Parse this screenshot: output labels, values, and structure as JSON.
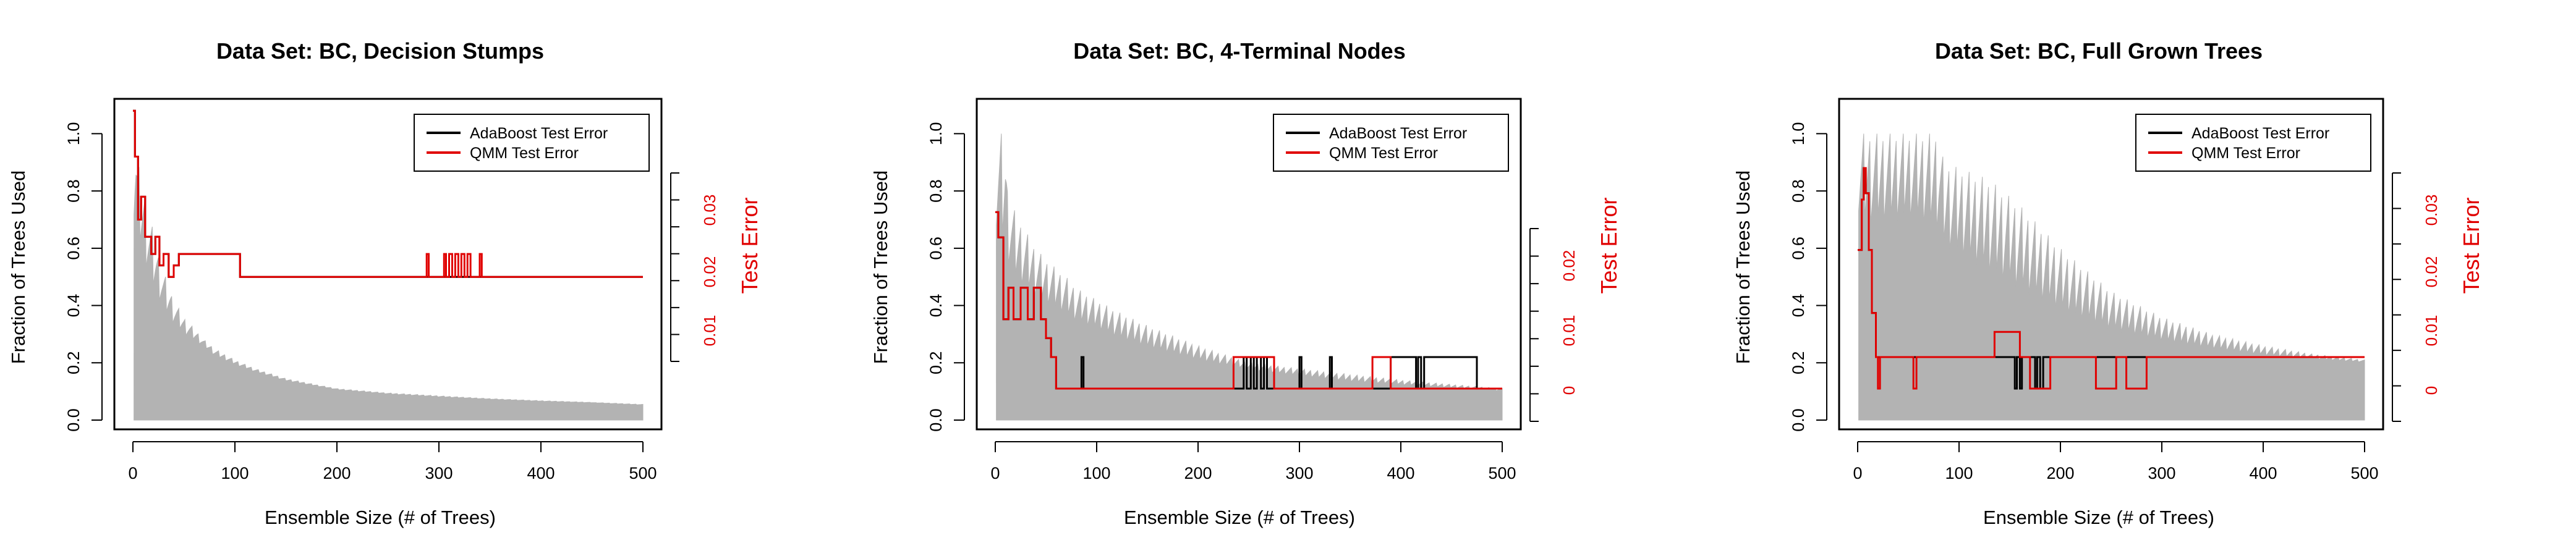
{
  "chart_data": [
    {
      "type": "area",
      "title": "Data Set: BC, Decision Stumps",
      "xlabel": "Ensemble Size (# of Trees)",
      "ylabel": "Fraction of Trees Used",
      "y2label": "Test Error",
      "xlim": [
        0,
        500
      ],
      "ylim": [
        0,
        1.1
      ],
      "y2lim": [
        -0.01,
        0.045
      ],
      "xticks": [
        "0",
        "100",
        "200",
        "300",
        "400",
        "500"
      ],
      "yticks": [
        "0.0",
        "0.2",
        "0.4",
        "0.6",
        "0.8",
        "1.0"
      ],
      "y2ticks": [
        "0.01",
        "0.02",
        "0.03"
      ],
      "legend_position": "top-right",
      "legend": [
        "AdaBoost Test Error",
        "QMM Test Error"
      ],
      "colors": {
        "area": "#b3b3b3",
        "adaboost": "#000000",
        "qmm": "#e00000"
      },
      "series": [
        {
          "name": "Fraction of Trees Used (max)",
          "x": [
            1,
            3,
            5,
            8,
            12,
            16,
            20,
            25,
            30,
            40,
            50,
            60,
            70,
            80,
            100,
            120,
            150,
            200,
            250,
            300,
            350,
            400,
            450,
            500
          ],
          "values": [
            1.0,
            0.97,
            0.9,
            0.85,
            0.8,
            0.72,
            0.66,
            0.58,
            0.52,
            0.42,
            0.36,
            0.32,
            0.28,
            0.25,
            0.21,
            0.18,
            0.145,
            0.11,
            0.095,
            0.085,
            0.075,
            0.068,
            0.062,
            0.055
          ]
        },
        {
          "name": "Fraction of Trees Used (min)",
          "x": [
            1,
            3,
            5,
            8,
            12,
            16,
            20,
            25,
            30,
            40,
            50,
            60,
            70,
            80,
            100,
            120,
            150,
            200,
            250,
            300,
            350,
            400,
            450,
            500
          ],
          "values": [
            0.6,
            0.7,
            0.58,
            0.55,
            0.5,
            0.46,
            0.42,
            0.4,
            0.36,
            0.32,
            0.29,
            0.27,
            0.25,
            0.22,
            0.19,
            0.165,
            0.135,
            0.105,
            0.09,
            0.08,
            0.072,
            0.065,
            0.06,
            0.052
          ]
        },
        {
          "name": "AdaBoost Test Error",
          "x": [
            0,
            2,
            2,
            5,
            5,
            8,
            8,
            12,
            12,
            18,
            18,
            22,
            22,
            26,
            26,
            30,
            30,
            35,
            35,
            40,
            40,
            45,
            45,
            105,
            105,
            500
          ],
          "values": [
            0.044,
            0.044,
            0.036,
            0.036,
            0.025,
            0.025,
            0.029,
            0.029,
            0.022,
            0.022,
            0.019,
            0.019,
            0.022,
            0.022,
            0.017,
            0.017,
            0.019,
            0.019,
            0.015,
            0.015,
            0.017,
            0.017,
            0.019,
            0.019,
            0.015,
            0.015
          ]
        },
        {
          "name": "QMM Test Error",
          "x": [
            0,
            2,
            2,
            5,
            5,
            8,
            8,
            12,
            12,
            18,
            18,
            22,
            22,
            26,
            26,
            30,
            30,
            35,
            35,
            40,
            40,
            45,
            45,
            105,
            105,
            288,
            288,
            290,
            290,
            305,
            305,
            307,
            307,
            310,
            310,
            313,
            313,
            316,
            316,
            319,
            319,
            322,
            322,
            325,
            325,
            328,
            328,
            331,
            331,
            340,
            340,
            342,
            342,
            500
          ],
          "values": [
            0.044,
            0.044,
            0.036,
            0.036,
            0.025,
            0.025,
            0.029,
            0.029,
            0.022,
            0.022,
            0.019,
            0.019,
            0.022,
            0.022,
            0.017,
            0.017,
            0.019,
            0.019,
            0.015,
            0.015,
            0.017,
            0.017,
            0.019,
            0.019,
            0.015,
            0.015,
            0.019,
            0.019,
            0.015,
            0.015,
            0.019,
            0.019,
            0.015,
            0.015,
            0.019,
            0.019,
            0.015,
            0.015,
            0.019,
            0.019,
            0.015,
            0.015,
            0.019,
            0.019,
            0.015,
            0.015,
            0.019,
            0.019,
            0.015,
            0.015,
            0.019,
            0.019,
            0.015,
            0.015
          ]
        }
      ]
    },
    {
      "type": "area",
      "title": "Data Set: BC, 4-Terminal Nodes",
      "xlabel": "Ensemble Size (# of Trees)",
      "ylabel": "Fraction of Trees Used",
      "y2label": "Test Error",
      "xlim": [
        0,
        500
      ],
      "ylim": [
        0,
        1.1
      ],
      "y2lim": [
        -0.005,
        0.045
      ],
      "xticks": [
        "0",
        "100",
        "200",
        "300",
        "400",
        "500"
      ],
      "yticks": [
        "0.0",
        "0.2",
        "0.4",
        "0.6",
        "0.8",
        "1.0"
      ],
      "y2ticks": [
        "0",
        "0.01",
        "0.02"
      ],
      "legend_position": "top-right",
      "legend": [
        "AdaBoost Test Error",
        "QMM Test Error"
      ],
      "colors": {
        "area": "#b3b3b3",
        "adaboost": "#000000",
        "qmm": "#e00000"
      },
      "series": [
        {
          "name": "Fraction of Trees Used (max)",
          "x": [
            1,
            10,
            12,
            20,
            30,
            40,
            50,
            60,
            70,
            80,
            100,
            120,
            150,
            200,
            250,
            300,
            350,
            400,
            450,
            500
          ],
          "values": [
            1.0,
            1.0,
            0.82,
            0.72,
            0.66,
            0.6,
            0.56,
            0.53,
            0.5,
            0.46,
            0.42,
            0.38,
            0.33,
            0.26,
            0.2,
            0.18,
            0.16,
            0.14,
            0.125,
            0.11
          ]
        },
        {
          "name": "Fraction of Trees Used (min)",
          "x": [
            1,
            10,
            12,
            20,
            30,
            40,
            50,
            60,
            70,
            80,
            100,
            120,
            150,
            200,
            250,
            300,
            350,
            400,
            450,
            500
          ],
          "values": [
            0.55,
            0.55,
            0.5,
            0.45,
            0.42,
            0.4,
            0.38,
            0.36,
            0.34,
            0.32,
            0.3,
            0.27,
            0.24,
            0.2,
            0.17,
            0.15,
            0.13,
            0.12,
            0.11,
            0.1
          ]
        },
        {
          "name": "AdaBoost Test Error",
          "x": [
            0,
            3,
            3,
            8,
            8,
            13,
            13,
            18,
            18,
            25,
            25,
            32,
            32,
            38,
            38,
            45,
            45,
            50,
            50,
            55,
            55,
            60,
            60,
            85,
            85,
            87,
            87,
            245,
            245,
            248,
            248,
            252,
            252,
            255,
            255,
            258,
            258,
            262,
            262,
            265,
            265,
            268,
            268,
            300,
            300,
            302,
            302,
            330,
            330,
            332,
            332,
            390,
            390,
            415,
            415,
            417,
            417,
            420,
            420,
            423,
            423,
            426,
            426,
            475,
            475,
            500
          ],
          "values": [
            0.028,
            0.028,
            0.024,
            0.024,
            0.011,
            0.011,
            0.016,
            0.016,
            0.011,
            0.011,
            0.016,
            0.016,
            0.011,
            0.011,
            0.016,
            0.016,
            0.011,
            0.011,
            0.008,
            0.008,
            0.005,
            0.005,
            0.0,
            0.0,
            0.005,
            0.005,
            0.0,
            0.0,
            0.005,
            0.005,
            0.0,
            0.0,
            0.005,
            0.005,
            0.0,
            0.0,
            0.005,
            0.005,
            0.0,
            0.0,
            0.005,
            0.005,
            0.0,
            0.0,
            0.005,
            0.005,
            0.0,
            0.0,
            0.005,
            0.005,
            0.0,
            0.0,
            0.005,
            0.005,
            0.0,
            0.0,
            0.005,
            0.005,
            0.0,
            0.0,
            0.005,
            0.005,
            0.005,
            0.005,
            0.0,
            0.0
          ]
        },
        {
          "name": "QMM Test Error",
          "x": [
            0,
            3,
            3,
            8,
            8,
            13,
            13,
            18,
            18,
            25,
            25,
            32,
            32,
            38,
            38,
            45,
            45,
            50,
            50,
            55,
            55,
            60,
            60,
            235,
            235,
            240,
            240,
            275,
            275,
            280,
            280,
            372,
            372,
            390,
            390,
            475,
            475,
            500
          ],
          "values": [
            0.028,
            0.028,
            0.024,
            0.024,
            0.011,
            0.011,
            0.016,
            0.016,
            0.011,
            0.011,
            0.016,
            0.016,
            0.011,
            0.011,
            0.016,
            0.016,
            0.011,
            0.011,
            0.008,
            0.008,
            0.005,
            0.005,
            0.0,
            0.0,
            0.005,
            0.005,
            0.005,
            0.005,
            0.0,
            0.0,
            0.0,
            0.0,
            0.005,
            0.005,
            0.0,
            0.0,
            0.0,
            0.0
          ]
        }
      ]
    },
    {
      "type": "area",
      "title": "Data Set: BC, Full Grown Trees",
      "xlabel": "Ensemble Size (# of Trees)",
      "ylabel": "Fraction of Trees Used",
      "y2label": "Test Error",
      "xlim": [
        0,
        500
      ],
      "ylim": [
        0,
        1.1
      ],
      "y2lim": [
        -0.005,
        0.045
      ],
      "xticks": [
        "0",
        "100",
        "200",
        "300",
        "400",
        "500"
      ],
      "yticks": [
        "0.0",
        "0.2",
        "0.4",
        "0.6",
        "0.8",
        "1.0"
      ],
      "y2ticks": [
        "0",
        "0.01",
        "0.02",
        "0.03"
      ],
      "legend_position": "top-right",
      "legend": [
        "AdaBoost Test Error",
        "QMM Test Error"
      ],
      "colors": {
        "area": "#b3b3b3",
        "adaboost": "#000000",
        "qmm": "#e00000"
      },
      "series": [
        {
          "name": "Fraction of Trees Used (max)",
          "x": [
            1,
            50,
            80,
            85,
            100,
            130,
            160,
            200,
            250,
            300,
            350,
            400,
            450,
            500
          ],
          "values": [
            1.0,
            1.0,
            1.0,
            0.9,
            0.88,
            0.84,
            0.75,
            0.6,
            0.45,
            0.36,
            0.3,
            0.26,
            0.23,
            0.21
          ]
        },
        {
          "name": "Fraction of Trees Used (min)",
          "x": [
            1,
            50,
            80,
            85,
            100,
            130,
            160,
            200,
            250,
            300,
            350,
            400,
            450,
            500
          ],
          "values": [
            0.62,
            0.65,
            0.6,
            0.55,
            0.52,
            0.45,
            0.4,
            0.34,
            0.29,
            0.26,
            0.24,
            0.22,
            0.21,
            0.2
          ]
        },
        {
          "name": "AdaBoost Test Error",
          "x": [
            0,
            4,
            4,
            6,
            6,
            8,
            8,
            11,
            11,
            14,
            14,
            18,
            18,
            155,
            155,
            157,
            157,
            160,
            160,
            162,
            162,
            175,
            175,
            177,
            177,
            180,
            180,
            183,
            183,
            500
          ],
          "values": [
            0.022,
            0.022,
            0.03,
            0.03,
            0.035,
            0.035,
            0.031,
            0.031,
            0.022,
            0.022,
            0.012,
            0.012,
            0.005,
            0.005,
            0.0,
            0.0,
            0.005,
            0.005,
            0.0,
            0.0,
            0.005,
            0.005,
            0.0,
            0.0,
            0.005,
            0.005,
            0.0,
            0.0,
            0.005,
            0.005
          ]
        },
        {
          "name": "QMM Test Error",
          "x": [
            0,
            4,
            4,
            6,
            6,
            8,
            8,
            11,
            11,
            14,
            14,
            18,
            18,
            20,
            20,
            22,
            22,
            55,
            55,
            58,
            58,
            62,
            62,
            135,
            135,
            160,
            160,
            170,
            170,
            190,
            190,
            200,
            200,
            235,
            235,
            255,
            255,
            265,
            265,
            285,
            285,
            300,
            300,
            500
          ],
          "values": [
            0.022,
            0.022,
            0.03,
            0.03,
            0.035,
            0.035,
            0.031,
            0.031,
            0.022,
            0.022,
            0.012,
            0.012,
            0.005,
            0.005,
            0.0,
            0.0,
            0.005,
            0.005,
            0.0,
            0.0,
            0.005,
            0.005,
            0.005,
            0.005,
            0.009,
            0.009,
            0.005,
            0.005,
            0.0,
            0.0,
            0.005,
            0.005,
            0.005,
            0.005,
            0.0,
            0.0,
            0.005,
            0.005,
            0.0,
            0.0,
            0.005,
            0.005,
            0.005,
            0.005
          ]
        }
      ]
    }
  ]
}
